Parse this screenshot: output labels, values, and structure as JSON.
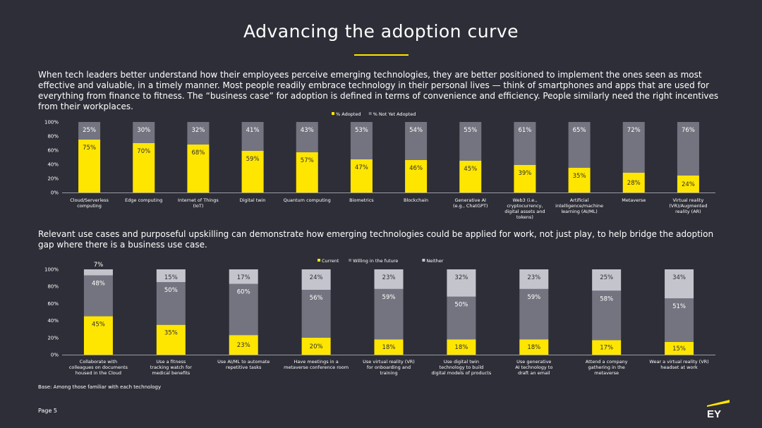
{
  "title": "Advancing the adoption curve",
  "intro": "When tech leaders better understand how their employees perceive emerging technologies, they are better positioned to implement the ones seen as most effective and valuable, in a timely manner. Most people readily embrace technology in their personal lives — think of smartphones and apps that are used for everything from finance to fitness. The “business case” for adoption is defined in terms of convenience and efficiency. People similarly need the right incentives from their workplaces.",
  "intro2": "Relevant use cases and purposeful upskilling can demonstrate how emerging technologies could be applied for work, not just play, to help bridge the adoption gap where there is a business use case.",
  "base_note": "Base: Among those familiar with each technology",
  "page_label": "Page 5",
  "logo_text": "EY",
  "colors": {
    "background": "#2e2e38",
    "yellow": "#ffe600",
    "mid_gray": "#747480",
    "light_gray": "#c4c4cd",
    "text": "#ffffff"
  },
  "chart_data": [
    {
      "type": "bar",
      "stacked": true,
      "ylim": [
        0,
        100
      ],
      "yticks": [
        "0%",
        "20%",
        "40%",
        "60%",
        "80%",
        "100%"
      ],
      "legend_position": "top",
      "categories": [
        [
          "Cloud/Serverless",
          "computing"
        ],
        [
          "Edge computing"
        ],
        [
          "Internet of Things",
          "(IoT)"
        ],
        [
          "Digital twin"
        ],
        [
          "Quantum computing"
        ],
        [
          "Biometrics"
        ],
        [
          "Blockchain"
        ],
        [
          "Generative AI",
          "(e.g., ChatGPT)"
        ],
        [
          "Web3 (i.e.,",
          "cryptocurrency,",
          "digital assets and",
          "tokens)"
        ],
        [
          "Artificial",
          "intelligence/machine",
          "learning (AI/ML)"
        ],
        [
          "Metaverse"
        ],
        [
          "Virtual reality",
          "(VR)/Augmented",
          "reality (AR)"
        ]
      ],
      "series": [
        {
          "name": "% Adopted",
          "color": "#ffe600",
          "values": [
            75,
            70,
            68,
            59,
            57,
            47,
            46,
            45,
            39,
            35,
            28,
            24
          ],
          "labels": [
            "75%",
            "70%",
            "68%",
            "59%",
            "57%",
            "47%",
            "46%",
            "45%",
            "39%",
            "35%",
            "28%",
            "24%"
          ]
        },
        {
          "name": "% Not Yet Adopted",
          "color": "#747480",
          "values": [
            25,
            30,
            32,
            41,
            43,
            53,
            54,
            55,
            61,
            65,
            72,
            76
          ],
          "labels": [
            "25%",
            "30%",
            "32%",
            "41%",
            "43%",
            "53%",
            "54%",
            "55%",
            "61%",
            "65%",
            "72%",
            "76%"
          ]
        }
      ]
    },
    {
      "type": "bar",
      "stacked": true,
      "ylim": [
        0,
        100
      ],
      "yticks": [
        "0%",
        "20%",
        "40%",
        "60%",
        "80%",
        "100%"
      ],
      "legend_position": "top",
      "categories": [
        [
          "Collaborate with",
          "colleagues on documents",
          "housed in the Cloud"
        ],
        [
          "Use a fitness",
          "tracking watch for",
          "medical benefits"
        ],
        [
          "Use AI/ML to automate",
          "repetitive tasks"
        ],
        [
          "Have meetings in a",
          "metaverse conference room"
        ],
        [
          "Use virtual reality (VR)",
          "for onboarding and",
          "training"
        ],
        [
          "Use digital twin",
          "technology to build",
          "digital models of products"
        ],
        [
          "Use generative",
          "AI technology to",
          "draft an email"
        ],
        [
          "Attend a company",
          "gathering in the",
          "metaverse"
        ],
        [
          "Wear a virtual reality (VR)",
          "headset at work"
        ]
      ],
      "series": [
        {
          "name": "Current",
          "color": "#ffe600",
          "values": [
            45,
            35,
            23,
            20,
            18,
            18,
            18,
            17,
            15
          ],
          "labels": [
            "45%",
            "35%",
            "23%",
            "20%",
            "18%",
            "18%",
            "18%",
            "17%",
            "15%"
          ]
        },
        {
          "name": "Willing in the future",
          "color": "#747480",
          "values": [
            48,
            50,
            60,
            56,
            59,
            50,
            59,
            58,
            51
          ],
          "labels": [
            "48%",
            "50%",
            "60%",
            "56%",
            "59%",
            "50%",
            "59%",
            "58%",
            "51%"
          ]
        },
        {
          "name": "Neither",
          "color": "#c4c4cd",
          "values": [
            7,
            15,
            17,
            24,
            23,
            32,
            23,
            25,
            34
          ],
          "labels": [
            "7%",
            "15%",
            "17%",
            "24%",
            "23%",
            "32%",
            "23%",
            "25%",
            "34%"
          ]
        }
      ]
    }
  ]
}
